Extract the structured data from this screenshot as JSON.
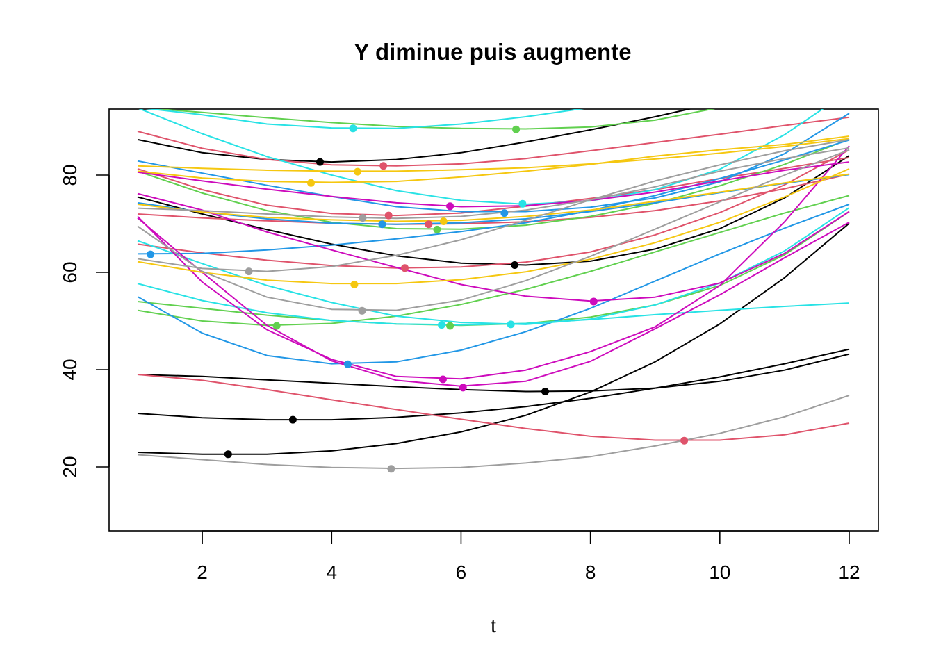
{
  "chart_data": {
    "type": "line",
    "title": "Y diminue puis augmente",
    "xlabel": "t",
    "ylabel": "",
    "xlim": [
      1,
      12
    ],
    "ylim": [
      7,
      93
    ],
    "x": [
      1,
      2,
      3,
      4,
      5,
      6,
      7,
      8,
      9,
      10,
      11,
      12
    ],
    "x_ticks": [
      2,
      4,
      6,
      8,
      10,
      12
    ],
    "y_ticks": [
      20,
      40,
      60,
      80
    ],
    "grid": false,
    "legend": "none",
    "series": [
      {
        "color": "#000000",
        "values": [
          87.3,
          84.6,
          83.2,
          82.7,
          83.2,
          84.6,
          86.8,
          89.3,
          92.0,
          95.0,
          98.0,
          101.0
        ],
        "min_x": 3.82,
        "min_y": 82.7
      },
      {
        "color": "#000000",
        "values": [
          75.5,
          72.0,
          68.8,
          65.8,
          63.4,
          61.9,
          61.5,
          62.3,
          64.8,
          69.0,
          75.3,
          84.0
        ],
        "min_x": 6.83,
        "min_y": 61.5
      },
      {
        "color": "#000000",
        "values": [
          39.0,
          38.6,
          37.9,
          37.2,
          36.5,
          35.9,
          35.5,
          35.6,
          36.2,
          37.6,
          39.9,
          43.2
        ],
        "min_x": 7.3,
        "min_y": 35.5
      },
      {
        "color": "#000000",
        "values": [
          31.0,
          30.1,
          29.7,
          29.7,
          30.2,
          31.1,
          32.4,
          34.1,
          36.2,
          38.5,
          41.2,
          44.2
        ],
        "min_x": 3.4,
        "min_y": 29.7
      },
      {
        "color": "#000000",
        "values": [
          23.0,
          22.6,
          22.6,
          23.3,
          24.8,
          27.2,
          30.6,
          35.4,
          41.6,
          49.4,
          58.9,
          70.1
        ],
        "min_x": 2.4,
        "min_y": 22.6
      },
      {
        "color": "#DF536B",
        "values": [
          89.0,
          85.5,
          83.2,
          82.1,
          81.9,
          82.3,
          83.4,
          85.0,
          86.7,
          88.4,
          90.2,
          91.9
        ],
        "min_x": 4.8,
        "min_y": 81.9
      },
      {
        "color": "#DF536B",
        "values": [
          81.3,
          77.0,
          73.8,
          72.1,
          71.7,
          72.2,
          73.6,
          75.2,
          77.0,
          79.3,
          81.4,
          83.6
        ],
        "min_x": 4.88,
        "min_y": 71.7
      },
      {
        "color": "#DF536B",
        "values": [
          72.0,
          71.2,
          70.6,
          70.1,
          69.9,
          70.0,
          70.4,
          71.3,
          72.7,
          74.7,
          77.2,
          80.2
        ],
        "min_x": 5.5,
        "min_y": 69.9
      },
      {
        "color": "#DF536B",
        "values": [
          65.8,
          64.0,
          62.5,
          61.4,
          60.9,
          61.1,
          62.1,
          64.2,
          67.7,
          72.3,
          78.0,
          85.2
        ],
        "min_x": 5.13,
        "min_y": 60.9
      },
      {
        "color": "#DF536B",
        "values": [
          39.0,
          37.8,
          35.9,
          33.8,
          31.8,
          29.8,
          27.9,
          26.3,
          25.5,
          25.5,
          26.6,
          29.0
        ],
        "min_x": 9.45,
        "min_y": 25.4
      },
      {
        "color": "#61D04F",
        "values": [
          93.9,
          92.9,
          91.8,
          90.8,
          90.0,
          89.6,
          89.5,
          89.9,
          91.3,
          93.9,
          97.5,
          102.0
        ],
        "min_x": 6.85,
        "min_y": 89.4
      },
      {
        "color": "#61D04F",
        "values": [
          80.8,
          76.3,
          72.7,
          70.3,
          69.0,
          68.9,
          69.7,
          71.5,
          74.2,
          77.8,
          82.2,
          87.4
        ],
        "min_x": 5.63,
        "min_y": 68.8
      },
      {
        "color": "#61D04F",
        "values": [
          54.0,
          52.6,
          51.2,
          50.1,
          49.4,
          49.1,
          49.5,
          50.8,
          53.3,
          57.3,
          63.6,
          72.5
        ],
        "min_x": 5.83,
        "min_y": 49.0
      },
      {
        "color": "#61D04F",
        "values": [
          52.2,
          50.0,
          49.1,
          49.5,
          51.0,
          53.4,
          56.5,
          60.2,
          64.2,
          68.2,
          72.2,
          75.8
        ],
        "min_x": 3.15,
        "min_y": 49.0
      },
      {
        "color": "#2297E6",
        "values": [
          82.9,
          80.4,
          77.9,
          75.6,
          73.5,
          72.5,
          72.5,
          73.4,
          75.3,
          78.6,
          84.4,
          92.7
        ],
        "min_x": 6.67,
        "min_y": 72.2
      },
      {
        "color": "#2297E6",
        "values": [
          74.3,
          72.4,
          71.0,
          70.1,
          69.9,
          70.2,
          71.0,
          72.5,
          74.3,
          76.4,
          78.3,
          80.1
        ],
        "min_x": 4.78,
        "min_y": 69.9
      },
      {
        "color": "#2297E6",
        "values": [
          63.8,
          63.9,
          64.6,
          65.6,
          66.9,
          68.4,
          70.2,
          72.7,
          75.8,
          79.3,
          83.1,
          87.2
        ],
        "min_x": 1.2,
        "min_y": 63.7
      },
      {
        "color": "#2297E6",
        "values": [
          55.0,
          47.5,
          42.9,
          41.2,
          41.6,
          44.0,
          47.8,
          52.6,
          58.2,
          63.8,
          69.1,
          74.0
        ],
        "min_x": 4.25,
        "min_y": 41.1
      },
      {
        "color": "#28E2E5",
        "values": [
          93.9,
          92.4,
          90.5,
          89.7,
          89.6,
          90.5,
          92.0,
          93.9,
          96.5,
          99.5,
          102.8,
          106.5
        ],
        "min_x": 4.33,
        "min_y": 89.6
      },
      {
        "color": "#28E2E5",
        "values": [
          93.8,
          88.5,
          83.8,
          80.0,
          76.8,
          74.8,
          74.0,
          74.7,
          77.0,
          81.2,
          88.3,
          97.3
        ],
        "min_x": 6.95,
        "min_y": 74.1
      },
      {
        "color": "#28E2E5",
        "values": [
          66.5,
          61.8,
          57.3,
          53.8,
          51.0,
          49.7,
          49.3,
          50.4,
          53.3,
          57.8,
          64.4,
          73.3
        ],
        "min_x": 6.77,
        "min_y": 49.3
      },
      {
        "color": "#28E2E5",
        "values": [
          57.7,
          54.2,
          51.7,
          50.1,
          49.4,
          49.2,
          49.5,
          50.3,
          51.3,
          52.2,
          53.0,
          53.7
        ],
        "min_x": 5.7,
        "min_y": 49.2
      },
      {
        "color": "#CD0BBC",
        "values": [
          80.6,
          78.8,
          77.1,
          75.6,
          74.3,
          73.5,
          73.7,
          74.8,
          76.5,
          78.8,
          81.0,
          82.7
        ],
        "min_x": 5.83,
        "min_y": 73.6
      },
      {
        "color": "#CD0BBC",
        "values": [
          76.2,
          72.8,
          68.3,
          64.6,
          61.0,
          57.5,
          55.1,
          54.1,
          54.9,
          57.8,
          63.9,
          72.5
        ],
        "min_x": 8.05,
        "min_y": 54.0
      },
      {
        "color": "#CD0BBC",
        "values": [
          71.5,
          58.0,
          48.2,
          42.1,
          38.6,
          38.1,
          39.9,
          43.7,
          48.8,
          57.3,
          70.4,
          86.0
        ],
        "min_x": 5.72,
        "min_y": 38.0
      },
      {
        "color": "#CD0BBC",
        "values": [
          71.2,
          60.0,
          49.1,
          41.8,
          37.8,
          36.6,
          37.6,
          41.7,
          48.4,
          55.4,
          63.0,
          70.3
        ],
        "min_x": 6.03,
        "min_y": 36.3
      },
      {
        "color": "#F5C710",
        "values": [
          81.9,
          81.4,
          81.0,
          80.8,
          80.8,
          81.1,
          81.5,
          82.3,
          83.3,
          84.5,
          85.9,
          87.5
        ],
        "min_x": 4.4,
        "min_y": 80.7
      },
      {
        "color": "#F5C710",
        "values": [
          80.8,
          79.4,
          78.7,
          78.5,
          78.7,
          79.6,
          80.8,
          82.2,
          83.9,
          85.2,
          86.3,
          88.0
        ],
        "min_x": 3.68,
        "min_y": 78.4
      },
      {
        "color": "#F5C710",
        "values": [
          74.0,
          72.4,
          71.3,
          70.8,
          70.5,
          70.7,
          71.5,
          72.8,
          74.6,
          76.5,
          78.4,
          80.2
        ],
        "min_x": 5.73,
        "min_y": 70.5
      },
      {
        "color": "#F5C710",
        "values": [
          62.2,
          60.0,
          58.4,
          57.7,
          57.7,
          58.5,
          60.1,
          62.7,
          66.1,
          70.3,
          75.5,
          81.3
        ],
        "min_x": 4.35,
        "min_y": 57.5
      },
      {
        "color": "#9E9E9E",
        "values": [
          73.2,
          72.7,
          72.0,
          71.4,
          71.1,
          71.5,
          72.8,
          74.9,
          77.6,
          80.8,
          83.4,
          85.6
        ],
        "min_x": 4.48,
        "min_y": 71.2
      },
      {
        "color": "#9E9E9E",
        "values": [
          69.5,
          60.2,
          54.9,
          52.4,
          52.2,
          54.3,
          58.3,
          63.3,
          68.9,
          74.5,
          80.0,
          85.2
        ],
        "min_x": 4.47,
        "min_y": 52.1
      },
      {
        "color": "#9E9E9E",
        "values": [
          62.8,
          60.8,
          60.2,
          61.2,
          63.5,
          66.7,
          70.7,
          74.9,
          78.8,
          82.1,
          85.0,
          87.3
        ],
        "min_x": 2.72,
        "min_y": 60.2
      },
      {
        "color": "#9E9E9E",
        "values": [
          22.5,
          21.5,
          20.5,
          19.9,
          19.7,
          19.9,
          20.8,
          22.1,
          24.3,
          26.9,
          30.3,
          34.7
        ],
        "min_x": 4.92,
        "min_y": 19.6
      }
    ]
  }
}
